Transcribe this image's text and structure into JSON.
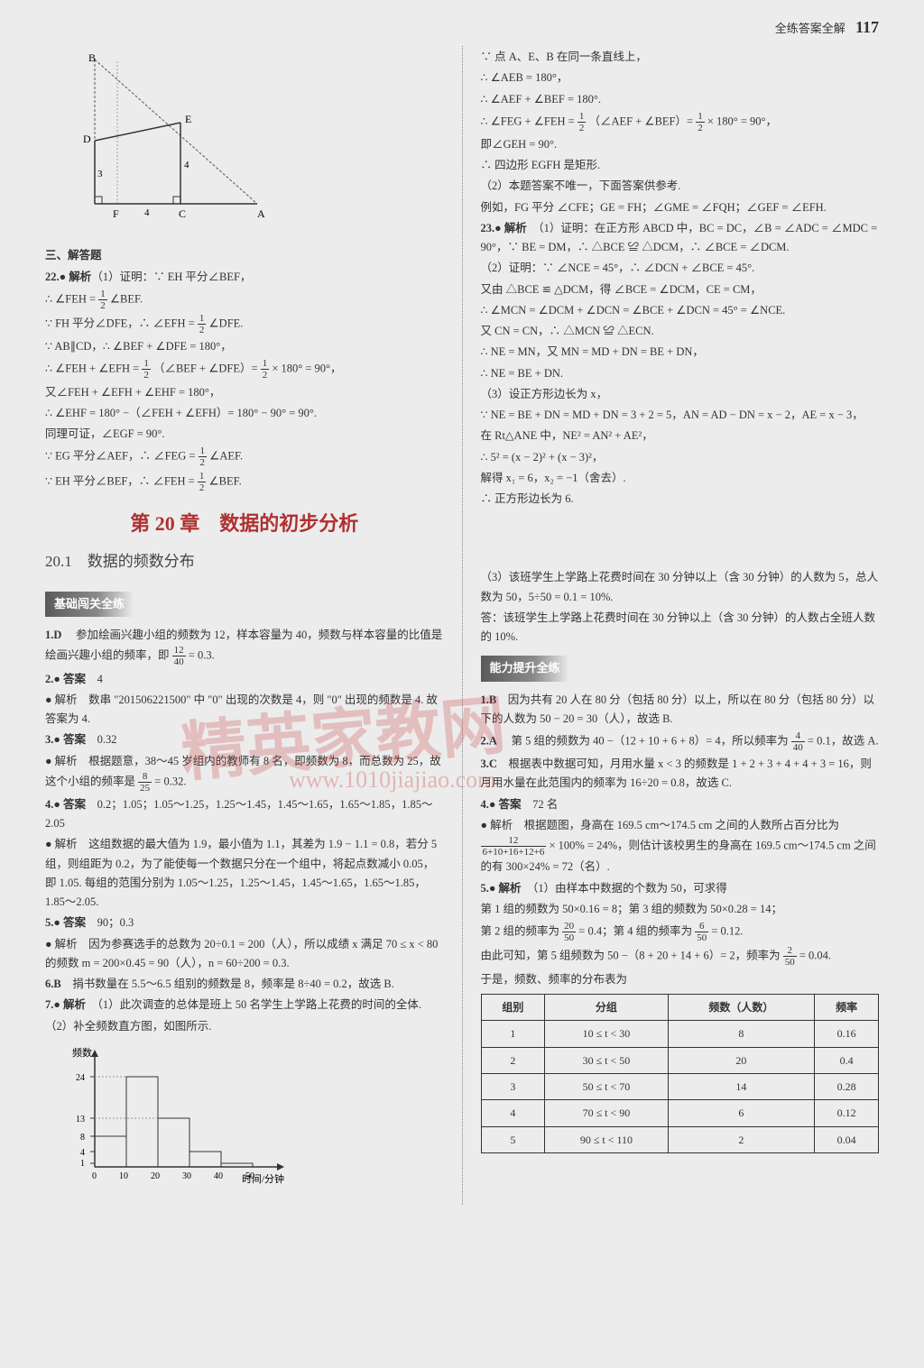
{
  "header": {
    "title": "全练答案全解",
    "page": "117"
  },
  "watermark": {
    "text1": "精英家教网",
    "text2": "www.1010jiajiao.com"
  },
  "left": {
    "sec3": "三、解答题",
    "q22": {
      "label": "22.● 解析",
      "p1": "（1）证明：∵ EH 平分∠BEF，",
      "f1a": "∴ ∠FEH = ",
      "f1frac": {
        "n": "1",
        "d": "2"
      },
      "f1b": " ∠BEF.",
      "p2a": "∵ FH 平分∠DFE，∴ ∠EFH = ",
      "p2frac": {
        "n": "1",
        "d": "2"
      },
      "p2b": " ∠DFE.",
      "p3": "∵ AB∥CD，∴ ∠BEF + ∠DFE = 180°，",
      "p4a": "∴ ∠FEH + ∠EFH = ",
      "p4f1": {
        "n": "1",
        "d": "2"
      },
      "p4b": "（∠BEF + ∠DFE）= ",
      "p4f2": {
        "n": "1",
        "d": "2"
      },
      "p4c": " × 180° = 90°，",
      "p5": "又∠FEH + ∠EFH + ∠EHF = 180°，",
      "p6": "∴ ∠EHF = 180° −（∠FEH + ∠EFH）= 180° − 90° = 90°.",
      "p7": "同理可证，∠EGF = 90°.",
      "p8a": "∵ EG 平分∠AEF，∴ ∠FEG = ",
      "p8f": {
        "n": "1",
        "d": "2"
      },
      "p8b": " ∠AEF.",
      "p9a": "∵ EH 平分∠BEF，∴ ∠FEH = ",
      "p9f": {
        "n": "1",
        "d": "2"
      },
      "p9b": " ∠BEF."
    },
    "chapter": "第 20 章　数据的初步分析",
    "sec201": "20.1　数据的频数分布",
    "banner1": "基础闯关全练",
    "q1": {
      "label": "1.D",
      "text": "　参加绘画兴趣小组的频数为 12，样本容量为 40，频数与样本容量的比值是绘画兴趣小组的频率，即 ",
      "frac": {
        "n": "12",
        "d": "40"
      },
      "tail": " = 0.3."
    },
    "q2": {
      "label": "2.● 答案",
      "ans": "4",
      "expl": "● 解析　数串 \"201506221500\" 中 \"0\" 出现的次数是 4，则 \"0\" 出现的频数是 4. 故答案为 4."
    },
    "q3": {
      "label": "3.● 答案",
      "ans": "0.32",
      "expl": "● 解析　根据题意，38～45 岁组内的教师有 8 名，即频数为 8，而总数为 25，故这个小组的频率是 ",
      "frac": {
        "n": "8",
        "d": "25"
      },
      "tail": " = 0.32."
    },
    "q4": {
      "label": "4.● 答案",
      "ans": "0.2；1.05；1.05～1.25，1.25～1.45，1.45～1.65，1.65～1.85，1.85～2.05",
      "expl": "● 解析　这组数据的最大值为 1.9，最小值为 1.1，其差为 1.9 − 1.1 = 0.8，若分 5 组，则组距为 0.2，为了能使每一个数据只分在一个组中，将起点数减小 0.05，即 1.05. 每组的范围分别为 1.05～1.25，1.25～1.45，1.45～1.65，1.65～1.85，1.85～2.05."
    },
    "q5": {
      "label": "5.● 答案",
      "ans": "90；0.3",
      "expl": "● 解析　因为参赛选手的总数为 20÷0.1 = 200（人），所以成绩 x 满足 70 ≤ x < 80 的频数 m = 200×0.45 = 90（人），n = 60÷200 = 0.3."
    },
    "q6": {
      "label": "6.B",
      "text": "　捐书数量在 5.5～6.5 组别的频数是 8，频率是 8÷40 = 0.2，故选 B."
    },
    "q7": {
      "label": "7.● 解析",
      "p1": "（1）此次调查的总体是班上 50 名学生上学路上花费的时间的全体.",
      "p2": "（2）补全频数直方图，如图所示."
    },
    "histo": {
      "ylabel": "频数",
      "xlabel": "时间/分钟",
      "ylabels": [
        "24",
        "13",
        "8",
        "4",
        "1"
      ],
      "xlabels": [
        "0",
        "10",
        "20",
        "30",
        "40",
        "50"
      ],
      "bars": [
        8,
        24,
        13,
        4,
        1
      ]
    }
  },
  "right": {
    "q22cont": {
      "p1": "∵ 点 A、E、B 在同一条直线上，",
      "p2": "∴ ∠AEB = 180°，",
      "p3": "∴ ∠AEF + ∠BEF = 180°.",
      "p4a": "∴ ∠FEG + ∠FEH = ",
      "p4f1": {
        "n": "1",
        "d": "2"
      },
      "p4b": "（∠AEF + ∠BEF）= ",
      "p4f2": {
        "n": "1",
        "d": "2"
      },
      "p4c": " × 180° = 90°，",
      "p5": "即∠GEH = 90°.",
      "p6": "∴ 四边形 EGFH 是矩形.",
      "p7": "（2）本题答案不唯一，下面答案供参考.",
      "p8": "例如，FG 平分 ∠CFE；GE = FH；∠GME = ∠FQH；∠GEF = ∠EFH."
    },
    "q23": {
      "label": "23.● 解析",
      "p1": "（1）证明：在正方形 ABCD 中，BC = DC，∠B = ∠ADC = ∠MDC = 90°，∵ BE = DM，∴ △BCE ≌ △DCM，∴ ∠BCE = ∠DCM.",
      "p2": "（2）证明：∵ ∠NCE = 45°，∴ ∠DCN + ∠BCE = 45°.",
      "p3": "又由 △BCE ≌ △DCM，得 ∠BCE = ∠DCM，CE = CM，",
      "p4": "∴ ∠MCN = ∠DCM + ∠DCN = ∠BCE + ∠DCN = 45° = ∠NCE.",
      "p5": "又 CN = CN，∴ △MCN ≌ △ECN.",
      "p6": "∴ NE = MN，又 MN = MD + DN = BE + DN，",
      "p7": "∴ NE = BE + DN.",
      "p8": "（3）设正方形边长为 x，",
      "p9": "∵ NE = BE + DN = MD + DN = 3 + 2 = 5，AN = AD − DN = x − 2，AE = x − 3，",
      "p10": "在 Rt△ANE 中，NE² = AN² + AE²，",
      "p11": "∴ 5² = (x − 2)² + (x − 3)²，",
      "p12": "解得 x₁ = 6，x₂ = −1（舍去）.",
      "p13": "∴ 正方形边长为 6."
    },
    "q7p3": {
      "text": "（3）该班学生上学路上花费时间在 30 分钟以上（含 30 分钟）的人数为 5，总人数为 50，5÷50 = 0.1 = 10%.",
      "ans": "答：该班学生上学路上花费时间在 30 分钟以上（含 30 分钟）的人数占全班人数的 10%."
    },
    "banner2": "能力提升全练",
    "r1": {
      "label": "1.B",
      "text": "　因为共有 20 人在 80 分（包括 80 分）以上，所以在 80 分（包括 80 分）以下的人数为 50 − 20 = 30（人），故选 B."
    },
    "r2": {
      "label": "2.A",
      "text": "　第 5 组的频数为 40 −（12 + 10 + 6 + 8）= 4，所以频率为 ",
      "frac": {
        "n": "4",
        "d": "40"
      },
      "tail": " = 0.1，故选 A."
    },
    "r3": {
      "label": "3.C",
      "text": "　根据表中数据可知，月用水量 x < 3 的频数是 1 + 2 + 3 + 4 + 4 + 3 = 16，则月用水量在此范围内的频率为 16÷20 = 0.8，故选 C."
    },
    "r4": {
      "label": "4.● 答案",
      "ans": "72 名",
      "expl1": "● 解析　根据题图，身高在 169.5 cm～174.5 cm 之间的人数所占百分比为 ",
      "frac": {
        "n": "12",
        "d": "6+10+16+12+6"
      },
      "expl2": " × 100% = 24%，则估计该校男生的身高在 169.5 cm～174.5 cm 之间的有 300×24% = 72（名）."
    },
    "r5": {
      "label": "5.● 解析",
      "p1": "（1）由样本中数据的个数为 50，可求得",
      "p2": "第 1 组的频数为 50×0.16 = 8；第 3 组的频数为 50×0.28 = 14；",
      "p3a": "第 2 组的频率为 ",
      "p3f1": {
        "n": "20",
        "d": "50"
      },
      "p3b": " = 0.4；第 4 组的频率为 ",
      "p3f2": {
        "n": "6",
        "d": "50"
      },
      "p3c": " = 0.12.",
      "p4a": "由此可知，第 5 组频数为 50 −（8 + 20 + 14 + 6）= 2，频率为 ",
      "p4f": {
        "n": "2",
        "d": "50"
      },
      "p4b": " = 0.04.",
      "p5": "于是，频数、频率的分布表为"
    },
    "table": {
      "headers": [
        "组别",
        "分组",
        "频数（人数）",
        "频率"
      ],
      "rows": [
        [
          "1",
          "10 ≤ t < 30",
          "8",
          "0.16"
        ],
        [
          "2",
          "30 ≤ t < 50",
          "20",
          "0.4"
        ],
        [
          "3",
          "50 ≤ t < 70",
          "14",
          "0.28"
        ],
        [
          "4",
          "70 ≤ t < 90",
          "6",
          "0.12"
        ],
        [
          "5",
          "90 ≤ t < 110",
          "2",
          "0.04"
        ]
      ]
    }
  },
  "geom": {
    "labels": {
      "B": "B",
      "D": "D",
      "E": "E",
      "F": "F",
      "C": "C",
      "A": "A",
      "n3": "3",
      "n4a": "4",
      "n4b": "4"
    }
  }
}
